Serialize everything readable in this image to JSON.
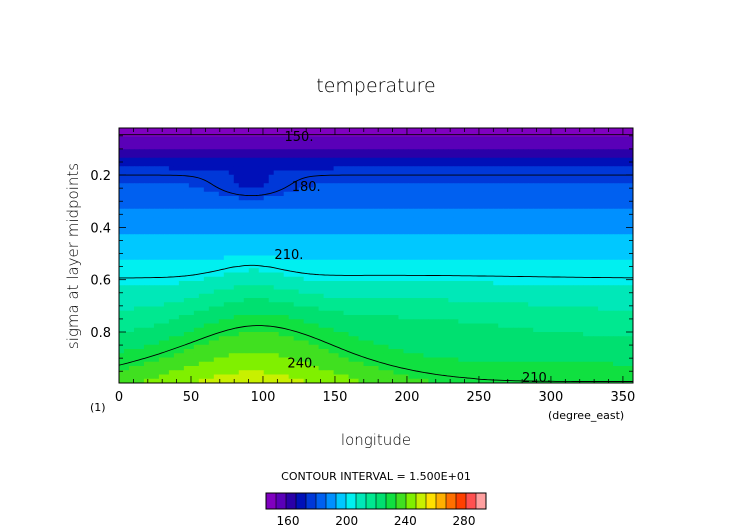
{
  "chart_data": {
    "type": "contour",
    "title": "temperature",
    "xlabel": "longitude",
    "ylabel": "sigma at layer midpoints",
    "x_units": "(degree_east)",
    "y_units": "(1)",
    "xlim": [
      0,
      357
    ],
    "ylim": [
      0.02,
      0.995
    ],
    "y_inverted": true,
    "x_ticks": [
      0,
      50,
      100,
      150,
      200,
      250,
      300,
      350
    ],
    "x_tick_labels": [
      "0",
      "50",
      "100",
      "150",
      "200",
      "250",
      "300",
      "350"
    ],
    "y_ticks": [
      0.2,
      0.4,
      0.6,
      0.8
    ],
    "y_tick_labels": [
      "0.2",
      "0.4",
      "0.6",
      "0.8"
    ],
    "contour_interval_text": "CONTOUR INTERVAL = 1.500E+01",
    "contour_levels": [
      150,
      180,
      210,
      240
    ],
    "contour_labels": [
      {
        "text": "150.",
        "x": 125,
        "y": 0.055
      },
      {
        "text": "180.",
        "x": 130,
        "y": 0.245
      },
      {
        "text": "210.",
        "x": 118,
        "y": 0.505
      },
      {
        "text": "240.",
        "x": 127,
        "y": 0.92
      },
      {
        "text": "210.",
        "x": 290,
        "y": 0.975
      }
    ],
    "colorbar": {
      "min": 145,
      "max": 295,
      "step": 7.5,
      "tick_values": [
        160,
        200,
        240,
        280
      ],
      "tick_labels": [
        "160",
        "200",
        "240",
        "280"
      ],
      "colors": [
        "#8000c0",
        "#5a00b8",
        "#2a00a8",
        "#0010b8",
        "#0038d8",
        "#0060f0",
        "#0090ff",
        "#00c8ff",
        "#00f0f0",
        "#00e8b8",
        "#00e890",
        "#00e070",
        "#10e040",
        "#40e020",
        "#80f000",
        "#c8f000",
        "#ffe000",
        "#ffb000",
        "#ff7000",
        "#ff4000",
        "#ff5050",
        "#ffa0a0"
      ]
    }
  }
}
